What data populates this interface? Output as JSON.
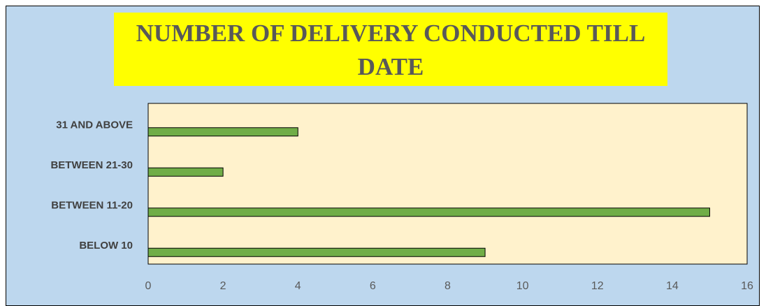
{
  "chart_data": {
    "type": "barh",
    "title": "NUMBER OF DELIVERY CONDUCTED TILL DATE",
    "categories": [
      "BELOW 10",
      "BETWEEN 11-20",
      "BETWEEN 21-30",
      "31 AND ABOVE"
    ],
    "values": [
      9,
      15,
      2,
      4
    ],
    "color": "#70ad47",
    "xlim": [
      0,
      16
    ],
    "xticks": [
      0,
      2,
      4,
      6,
      8,
      10,
      12,
      14,
      16
    ],
    "grid": false
  }
}
